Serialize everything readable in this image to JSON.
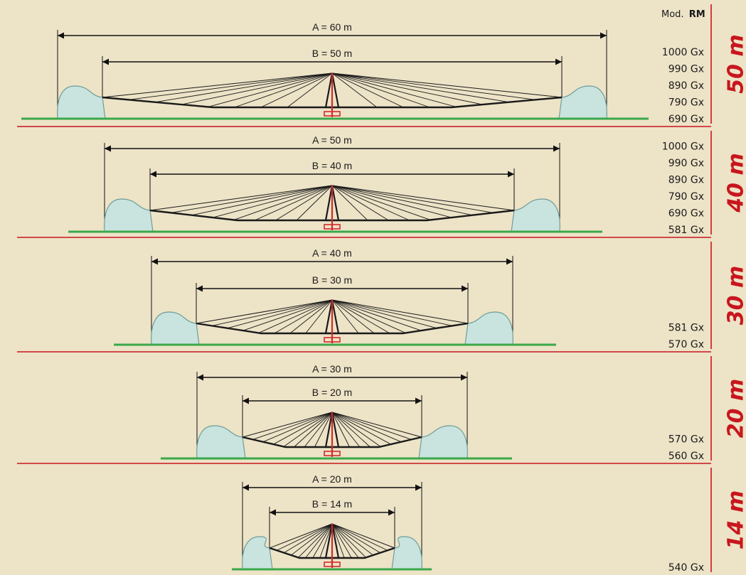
{
  "header": {
    "mod_prefix": "Mod.",
    "mod_name": "RM"
  },
  "colors": {
    "background": "#ede3c7",
    "ground": "#3aa84a",
    "separator": "#c8161d",
    "mast": "#d42a2a",
    "tank_fill": "#c9e3df",
    "tank_stroke": "#6e9e98",
    "width_label": "#c8161d"
  },
  "sections": [
    {
      "width_label": "50 m",
      "a_label": "A = 60 m",
      "b_label": "B = 50 m",
      "models": [
        "1000 Gx",
        "990 Gx",
        "890 Gx",
        "790 Gx",
        "690 Gx"
      ]
    },
    {
      "width_label": "40 m",
      "a_label": "A = 50 m",
      "b_label": "B = 40 m",
      "models": [
        "1000 Gx",
        "990 Gx",
        "890 Gx",
        "790 Gx",
        "690 Gx",
        "581 Gx"
      ]
    },
    {
      "width_label": "30 m",
      "a_label": "A = 40 m",
      "b_label": "B = 30 m",
      "models": [
        "581 Gx",
        "570 Gx"
      ]
    },
    {
      "width_label": "20 m",
      "a_label": "A = 30 m",
      "b_label": "B = 20 m",
      "models": [
        "570 Gx",
        "560 Gx"
      ]
    },
    {
      "width_label": "14 m",
      "a_label": "A = 20 m",
      "b_label": "B = 14 m",
      "models": [
        "540 Gx"
      ]
    }
  ]
}
